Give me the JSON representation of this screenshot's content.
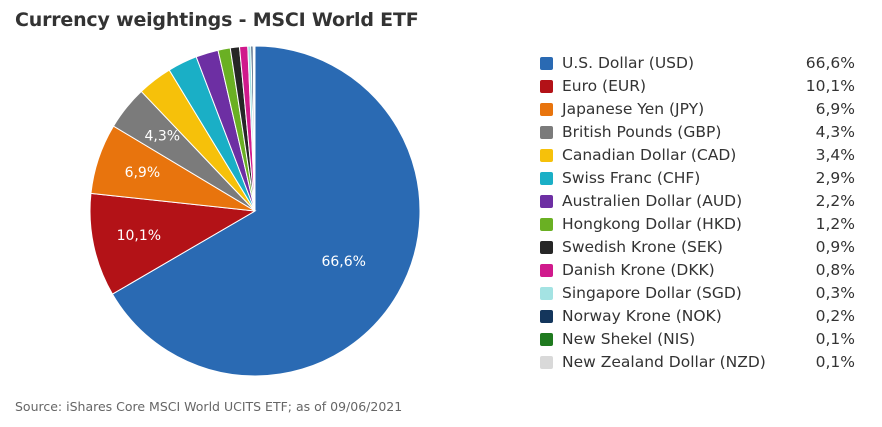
{
  "title": "Currency weightings - MSCI World ETF",
  "source": "Source: iShares Core MSCI World UCITS ETF; as of 09/06/2021",
  "chart_data": {
    "type": "pie",
    "legend_placement": "right",
    "slices": [
      {
        "label": "U.S. Dollar (USD)",
        "value": 66.6,
        "display": "66,6%",
        "color": "#2a6ab3",
        "show_label": true
      },
      {
        "label": "Euro (EUR)",
        "value": 10.1,
        "display": "10,1%",
        "color": "#b31217",
        "show_label": true
      },
      {
        "label": "Japanese Yen (JPY)",
        "value": 6.9,
        "display": "6,9%",
        "color": "#e8740d",
        "show_label": true
      },
      {
        "label": "British Pounds (GBP)",
        "value": 4.3,
        "display": "4,3%",
        "color": "#7b7b7b",
        "show_label": true
      },
      {
        "label": "Canadian Dollar (CAD)",
        "value": 3.4,
        "display": "3,4%",
        "color": "#f6c10a",
        "show_label": false
      },
      {
        "label": "Swiss Franc (CHF)",
        "value": 2.9,
        "display": "2,9%",
        "color": "#1aafc6",
        "show_label": false
      },
      {
        "label": "Australien Dollar (AUD)",
        "value": 2.2,
        "display": "2,2%",
        "color": "#6d2fa3",
        "show_label": false
      },
      {
        "label": "Hongkong Dollar (HKD)",
        "value": 1.2,
        "display": "1,2%",
        "color": "#6ab023",
        "show_label": false
      },
      {
        "label": "Swedish Krone (SEK)",
        "value": 0.9,
        "display": "0,9%",
        "color": "#262626",
        "show_label": false
      },
      {
        "label": "Danish Krone (DKK)",
        "value": 0.8,
        "display": "0,8%",
        "color": "#d01a8c",
        "show_label": false
      },
      {
        "label": "Singapore Dollar (SGD)",
        "value": 0.3,
        "display": "0,3%",
        "color": "#a4e3e3",
        "show_label": false
      },
      {
        "label": "Norway Krone (NOK)",
        "value": 0.2,
        "display": "0,2%",
        "color": "#14365c",
        "show_label": false
      },
      {
        "label": "New Shekel (NIS)",
        "value": 0.1,
        "display": "0,1%",
        "color": "#1f7a1f",
        "show_label": false
      },
      {
        "label": "New Zealand Dollar (NZD)",
        "value": 0.1,
        "display": "0,1%",
        "color": "#d9d9d9",
        "show_label": false
      }
    ]
  }
}
